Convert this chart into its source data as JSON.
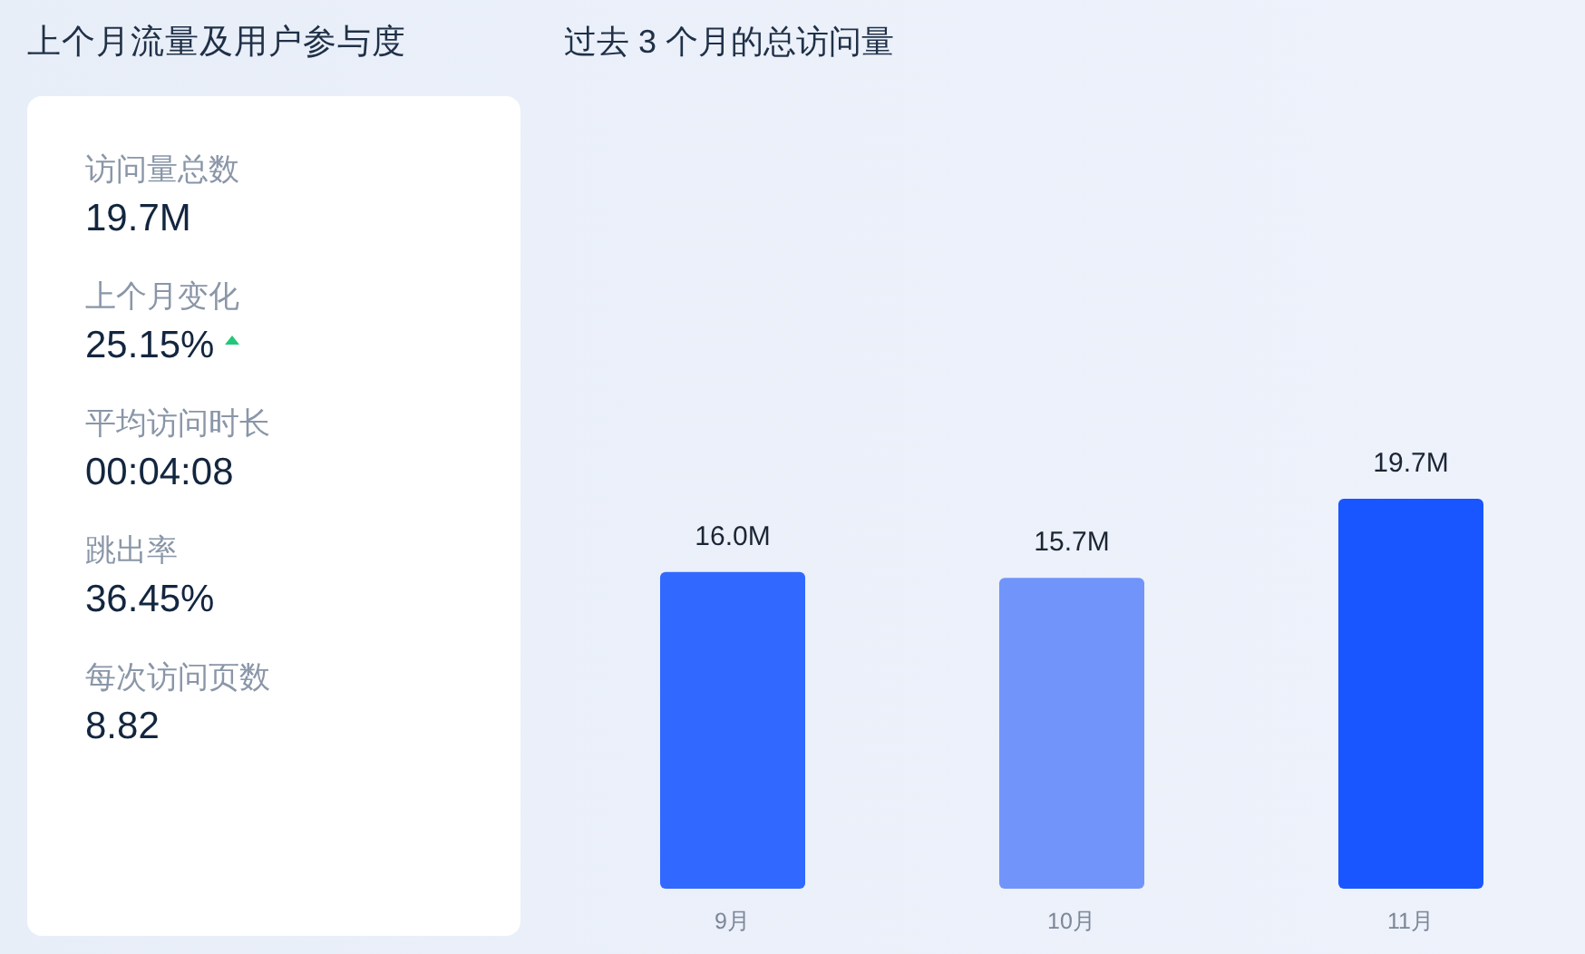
{
  "chart_data": [
    {
      "type": "other",
      "title": "上个月流量及用户参与度",
      "categories": [
        "访问量总数",
        "上个月变化",
        "平均访问时长",
        "跳出率",
        "每次访问页数"
      ],
      "value_labels": [
        "19.7M",
        "25.15%",
        "00:04:08",
        "36.45%",
        "8.82"
      ]
    },
    {
      "type": "bar",
      "title": "过去 3 个月的总访问量",
      "categories": [
        "9月",
        "10月",
        "11月"
      ],
      "values": [
        16.0,
        15.7,
        19.7
      ],
      "colors": [
        "#3168ff",
        "#7094fa",
        "#1a56ff"
      ],
      "value_labels": [
        "16.0M",
        "15.7M",
        "19.7M"
      ]
    }
  ]
}
